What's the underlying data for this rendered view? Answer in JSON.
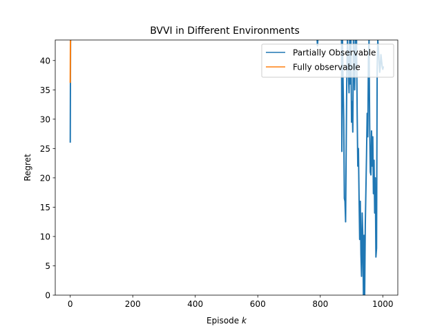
{
  "chart_data": {
    "type": "line",
    "title": "BVVI in Different Environments",
    "xlabel": "Episode",
    "xlabel_var": "k",
    "ylabel": "Regret",
    "xlim": [
      -48,
      1048
    ],
    "ylim": [
      0,
      43.5
    ],
    "xticks": [
      0,
      200,
      400,
      600,
      800,
      1000
    ],
    "yticks": [
      0,
      5,
      10,
      15,
      20,
      25,
      30,
      35,
      40
    ],
    "legend_position": "top-right",
    "grid": false,
    "series": [
      {
        "name": "Partially Observable",
        "color": "#1f77b4",
        "segments": [
          {
            "x": [
              0,
              0.5,
              1
            ],
            "y": [
              26,
              36,
              43.5
            ]
          },
          {
            "x": [
              790,
              791,
              792
            ],
            "y": [
              43.5,
              42.5,
              43.5
            ]
          },
          {
            "x": [
              868,
              869,
              871,
              873,
              875,
              877,
              879,
              881,
              883,
              885,
              887,
              889,
              892,
              894,
              896,
              898,
              900,
              902,
              904,
              906,
              908,
              910,
              912,
              914,
              916,
              918,
              920,
              922,
              924,
              926,
              928,
              930,
              932,
              934,
              936,
              938,
              940,
              942,
              944,
              946,
              948,
              950,
              952,
              954,
              956,
              958,
              960,
              962,
              964,
              966,
              968,
              970,
              972,
              974,
              976,
              978,
              980,
              982,
              984,
              986,
              988,
              990,
              992,
              994,
              996,
              998,
              1000,
              1002
            ],
            "y": [
              43.5,
              24.5,
              43.5,
              36,
              30,
              16.5,
              16,
              12.5,
              26,
              38,
              43.5,
              40,
              34.5,
              43.5,
              36,
              43.5,
              29.5,
              33,
              27.8,
              43.5,
              41,
              35,
              43.5,
              39,
              43.5,
              31,
              22,
              25,
              17,
              9.5,
              16,
              7,
              3.2,
              14,
              10,
              0,
              10.2,
              0,
              12,
              18,
              24,
              31,
              27,
              40,
              43.5,
              29,
              21,
              20.5,
              28,
              22,
              27,
              17.3,
              23,
              14,
              20,
              6.5,
              8,
              38.5,
              43.5,
              42,
              40,
              38,
              39,
              41,
              40,
              39,
              38.5,
              39
            ]
          }
        ]
      },
      {
        "name": "Fully observable",
        "color": "#ff7f0e",
        "segments": [
          {
            "x": [
              0,
              0.3,
              0.6,
              1
            ],
            "y": [
              36.2,
              40,
              43,
              43.5
            ]
          }
        ]
      }
    ]
  }
}
